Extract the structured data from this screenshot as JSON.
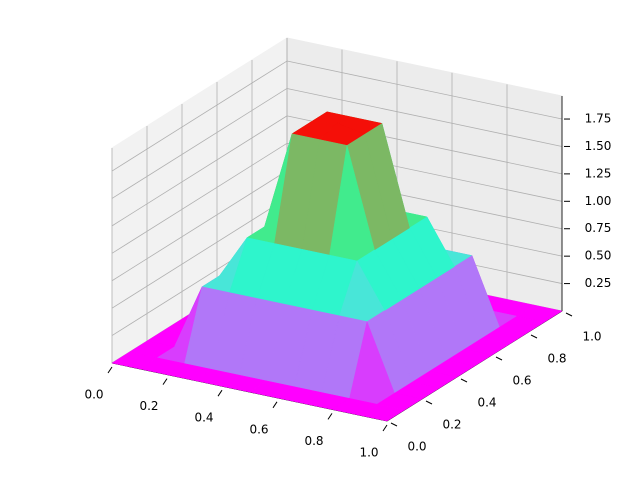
{
  "chart_data": {
    "type": "surface",
    "colormap": "rainbow",
    "x": [
      0,
      0.1,
      0.2,
      0.3,
      0.4,
      0.5,
      0.6,
      0.7,
      0.8,
      0.9,
      1
    ],
    "y": [
      0,
      0.1,
      0.2,
      0.3,
      0.4,
      0.5,
      0.6,
      0.7,
      0.8,
      0.9,
      1
    ],
    "z": [
      [
        0,
        0,
        0,
        0,
        0,
        0,
        0,
        0,
        0,
        0,
        0
      ],
      [
        0,
        0,
        0,
        0,
        0,
        0,
        0,
        0,
        0,
        0,
        0
      ],
      [
        0,
        0,
        0.6,
        0.6,
        0.6,
        0.6,
        0.6,
        0.6,
        0.6,
        0,
        0
      ],
      [
        0,
        0,
        0.6,
        1.0,
        1.0,
        1.0,
        1.0,
        1.0,
        0.6,
        0,
        0
      ],
      [
        0,
        0,
        0.6,
        1.0,
        1.9,
        1.9,
        1.9,
        1.0,
        0.6,
        0,
        0
      ],
      [
        0,
        0,
        0.6,
        1.0,
        1.9,
        1.95,
        1.9,
        1.0,
        0.6,
        0,
        0
      ],
      [
        0,
        0,
        0.6,
        1.0,
        1.9,
        1.9,
        1.9,
        1.0,
        0.6,
        0,
        0
      ],
      [
        0,
        0,
        0.6,
        1.0,
        1.0,
        1.0,
        1.0,
        1.0,
        0.6,
        0,
        0
      ],
      [
        0,
        0,
        0.6,
        0.6,
        0.6,
        0.6,
        0.6,
        0.6,
        0.6,
        0,
        0
      ],
      [
        0,
        0,
        0,
        0,
        0,
        0,
        0,
        0,
        0,
        0,
        0
      ],
      [
        0,
        0,
        0,
        0,
        0,
        0,
        0,
        0,
        0,
        0,
        0
      ]
    ],
    "xlim": [
      0,
      1
    ],
    "ylim": [
      0,
      1
    ],
    "zlim": [
      0,
      1.96
    ],
    "xticks": [
      {
        "value": 0,
        "label": "0.0"
      },
      0.2,
      0.4,
      0.6,
      0.8,
      {
        "value": 1,
        "label": "1.0"
      }
    ],
    "yticks": [
      {
        "value": 0,
        "label": "0.0"
      },
      0.2,
      0.4,
      0.6,
      0.8,
      {
        "value": 1,
        "label": "1.0"
      }
    ],
    "zticks": [
      0.25,
      {
        "value": 0.5,
        "label": "0.50"
      },
      0.75,
      {
        "value": 1,
        "label": "1.00"
      },
      1.25,
      {
        "value": 1.5,
        "label": "1.50"
      },
      1.75
    ],
    "grid": true
  }
}
